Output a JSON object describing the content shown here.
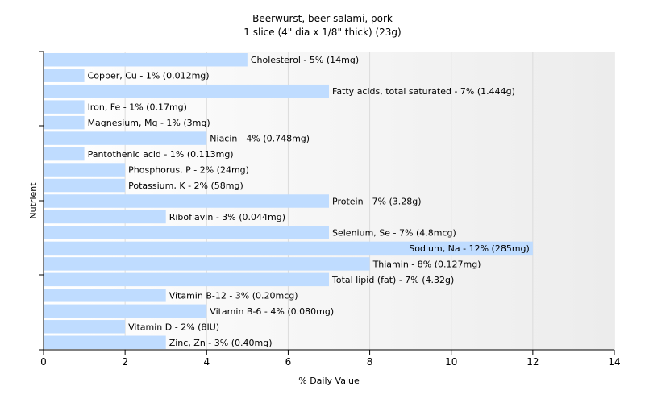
{
  "chart_data": {
    "type": "bar",
    "orientation": "horizontal",
    "title": "Beerwurst, beer salami, pork",
    "subtitle": "1 slice (4\" dia x 1/8\" thick) (23g)",
    "xlabel": "% Daily Value",
    "ylabel": "Nutrient",
    "xlim": [
      0,
      14
    ],
    "xticks": [
      "0",
      "2",
      "4",
      "6",
      "8",
      "10",
      "12",
      "14"
    ],
    "grid": true,
    "bar_color": "#bfdcff",
    "categories": [
      "Cholesterol",
      "Copper, Cu",
      "Fatty acids, total saturated",
      "Iron, Fe",
      "Magnesium, Mg",
      "Niacin",
      "Pantothenic acid",
      "Phosphorus, P",
      "Potassium, K",
      "Protein",
      "Riboflavin",
      "Selenium, Se",
      "Sodium, Na",
      "Thiamin",
      "Total lipid (fat)",
      "Vitamin B-12",
      "Vitamin B-6",
      "Vitamin D",
      "Zinc, Zn"
    ],
    "values": [
      5,
      1,
      7,
      1,
      1,
      4,
      1,
      2,
      2,
      7,
      3,
      7,
      12,
      8,
      7,
      3,
      4,
      2,
      3
    ],
    "bar_labels": [
      "Cholesterol - 5% (14mg)",
      "Copper, Cu - 1% (0.012mg)",
      "Fatty acids, total saturated - 7% (1.444g)",
      "Iron, Fe - 1% (0.17mg)",
      "Magnesium, Mg - 1% (3mg)",
      "Niacin - 4% (0.748mg)",
      "Pantothenic acid - 1% (0.113mg)",
      "Phosphorus, P - 2% (24mg)",
      "Potassium, K - 2% (58mg)",
      "Protein - 7% (3.28g)",
      "Riboflavin - 3% (0.044mg)",
      "Selenium, Se - 7% (4.8mcg)",
      "Sodium, Na - 12% (285mg)",
      "Thiamin - 8% (0.127mg)",
      "Total lipid (fat) - 7% (4.32g)",
      "Vitamin B-12 - 3% (0.20mcg)",
      "Vitamin B-6 - 4% (0.080mg)",
      "Vitamin D - 2% (8IU)",
      "Zinc, Zn - 3% (0.40mg)"
    ]
  }
}
